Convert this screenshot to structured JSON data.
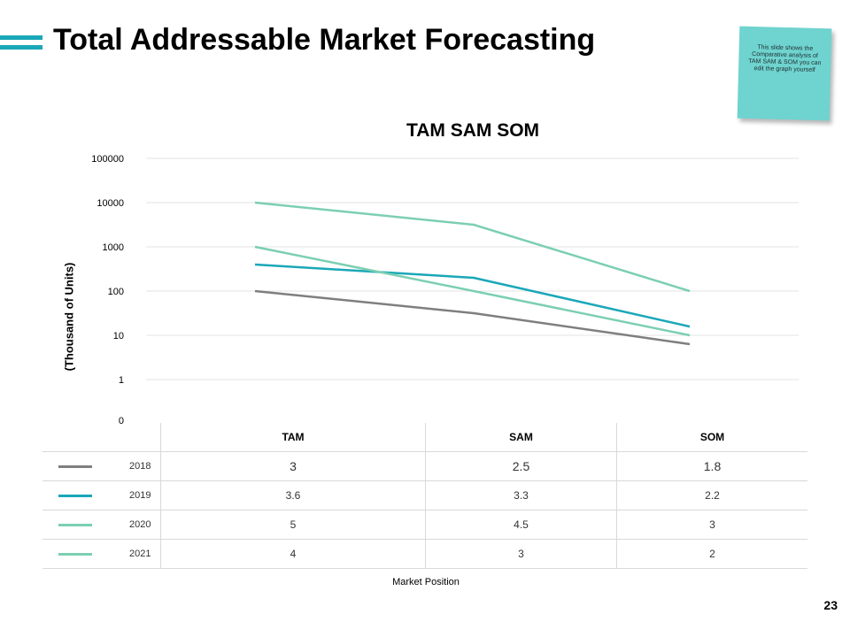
{
  "slide": {
    "title": "Total Addressable Market Forecasting",
    "page_number": "23",
    "note": "This slide shows the Comparative analysis of TAM SAM & SOM you can edit the graph yourself",
    "accent_color": "#1aa7b8",
    "note_color": "#6fd3cf"
  },
  "chart_data": {
    "type": "line",
    "title": "TAM SAM SOM",
    "ylabel": "(Thousand of Units)",
    "xlabel": "Market Position",
    "categories": [
      "TAM",
      "SAM",
      "SOM"
    ],
    "y_scale": "log",
    "y_ticks": [
      "100000",
      "10000",
      "1000",
      "100",
      "10",
      "1",
      "0"
    ],
    "grid": true,
    "legend": "data-table-left",
    "series": [
      {
        "name": "2018",
        "labels": [
          "3",
          "2.5",
          "1.8"
        ],
        "values": [
          100,
          31.6,
          6.3
        ],
        "color": "#7f7f7f"
      },
      {
        "name": "2019",
        "labels": [
          "3.6",
          "3.3",
          "2.2"
        ],
        "values": [
          398,
          199.5,
          15.8
        ],
        "color": "#1aa7b8"
      },
      {
        "name": "2020",
        "labels": [
          "5",
          "4.5",
          "3"
        ],
        "values": [
          10000,
          3162,
          100
        ],
        "color": "#7ccfb1"
      },
      {
        "name": "2021",
        "labels": [
          "4",
          "3",
          "2"
        ],
        "values": [
          1000,
          100,
          10
        ],
        "color": "#7ccfb1"
      }
    ]
  }
}
